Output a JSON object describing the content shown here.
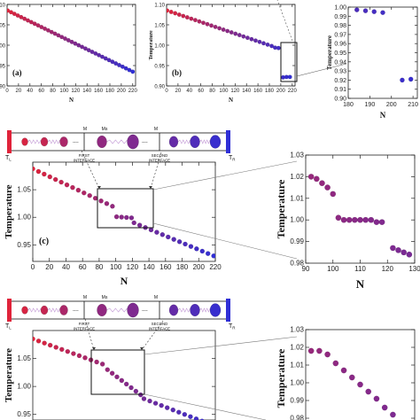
{
  "colors": {
    "hot": "#e0233a",
    "cold": "#2f2fd6",
    "mid": "#8a2fc4",
    "wire": "#c39ad6",
    "reservoir_left": "#e0233a",
    "reservoir_right": "#2f2fd6"
  },
  "diagrams": [
    {
      "reservoir_left_label": "T",
      "reservoir_left_sub": "L",
      "reservoir_right_label": "T",
      "reservoir_right_sub": "R",
      "m_left": "M",
      "ms": "Ms",
      "m_right": "M",
      "first_interface": [
        "FIRST",
        "INTERFACE"
      ],
      "second_interface": [
        "SECOND",
        "INTERFACE"
      ],
      "ellipsis": "----"
    },
    {
      "reservoir_left_label": "T",
      "reservoir_left_sub": "L",
      "reservoir_right_label": "T",
      "reservoir_right_sub": "R",
      "m_left": "M",
      "ms": "Ms",
      "m_right": "M",
      "first_interface": [
        "FIRST",
        "INTERFACE"
      ],
      "second_interface": [
        "SECOND",
        "INTERFACE"
      ],
      "ellipsis": "----"
    }
  ],
  "chart_data": [
    {
      "id": "a",
      "type": "scatter",
      "panel_label": "(a)",
      "xlabel": "N",
      "ylabel": "Temperature",
      "xlim": [
        0,
        225
      ],
      "ylim": [
        0.9,
        1.1
      ],
      "xticks": [
        0,
        20,
        40,
        60,
        80,
        100,
        120,
        140,
        160,
        180,
        200,
        220
      ],
      "yticks": [
        0.9,
        0.95,
        1.0,
        1.05,
        1.1
      ],
      "yticklabels": [
        "0.90",
        "0.95",
        "1.00",
        "1.05",
        "1.10"
      ],
      "segments": [
        {
          "x0": 1,
          "x1": 220,
          "step": 6,
          "y0": 1.085,
          "y1": 0.935
        }
      ]
    },
    {
      "id": "b",
      "type": "scatter",
      "panel_label": "(b)",
      "xlabel": "N",
      "ylabel": "Temperature",
      "xlim": [
        0,
        225
      ],
      "ylim": [
        0.9,
        1.1
      ],
      "xticks": [
        0,
        20,
        40,
        60,
        80,
        100,
        120,
        140,
        160,
        180,
        200,
        220
      ],
      "yticks": [
        0.9,
        0.95,
        1.0,
        1.05,
        1.1
      ],
      "yticklabels": [
        "0.90",
        "0.95",
        "1.00",
        "1.05",
        "1.10"
      ],
      "segments": [
        {
          "x0": 1,
          "x1": 184,
          "step": 7,
          "y0": 1.085,
          "y1": 0.998
        }
      ],
      "points": [
        [
          190,
          0.994
        ],
        [
          196,
          0.993
        ],
        [
          204,
          0.921
        ],
        [
          210,
          0.922
        ],
        [
          216,
          0.922
        ]
      ]
    },
    {
      "id": "b_zoom",
      "type": "scatter",
      "panel_label": "",
      "xlabel": "N",
      "ylabel": "Temperature",
      "xlim": [
        180,
        212
      ],
      "ylim": [
        0.9,
        1.0
      ],
      "xticks": [
        180,
        190,
        200,
        210
      ],
      "yticks": [
        0.9,
        0.91,
        0.92,
        0.93,
        0.94,
        0.95,
        0.96,
        0.97,
        0.98,
        0.99,
        1.0
      ],
      "yticklabels": [
        "0.90",
        "0.91",
        "0.92",
        "0.93",
        "0.94",
        "0.95",
        "0.96",
        "0.97",
        "0.98",
        "0.99",
        "1.00"
      ],
      "points": [
        [
          184,
          0.997
        ],
        [
          188,
          0.996
        ],
        [
          192,
          0.995
        ],
        [
          196,
          0.994
        ],
        [
          205,
          0.92
        ],
        [
          209,
          0.921
        ]
      ]
    },
    {
      "id": "c",
      "type": "scatter",
      "panel_label": "(c)",
      "xlabel": "N",
      "ylabel": "Temperature",
      "xlim": [
        0,
        220
      ],
      "ylim": [
        0.92,
        1.1
      ],
      "xticks": [
        0,
        20,
        40,
        60,
        80,
        100,
        120,
        140,
        160,
        180,
        200,
        220
      ],
      "yticks": [
        0.95,
        1.0,
        1.05
      ],
      "yticklabels": [
        "0.95",
        "1.00",
        "1.05"
      ],
      "segments": [
        {
          "x0": 0,
          "x1": 96,
          "step": 7,
          "y0": 1.088,
          "y1": 1.02
        },
        {
          "x0": 101,
          "x1": 119,
          "step": 6,
          "y0": 1.001,
          "y1": 0.999
        },
        {
          "x0": 122,
          "x1": 218,
          "step": 7,
          "y0": 0.99,
          "y1": 0.93
        }
      ]
    },
    {
      "id": "c_zoom",
      "type": "scatter",
      "panel_label": "",
      "xlabel": "N",
      "ylabel": "Temperature",
      "xlim": [
        90,
        130
      ],
      "ylim": [
        0.98,
        1.03
      ],
      "xticks": [
        90,
        100,
        110,
        120,
        130
      ],
      "yticks": [
        0.98,
        0.99,
        1.0,
        1.01,
        1.02,
        1.03
      ],
      "yticklabels": [
        "0.98",
        "0.99",
        "1.00",
        "1.01",
        "1.02",
        "1.03"
      ],
      "points": [
        [
          92,
          1.02
        ],
        [
          94,
          1.019
        ],
        [
          96,
          1.017
        ],
        [
          98,
          1.015
        ],
        [
          100,
          1.012
        ],
        [
          102,
          1.001
        ],
        [
          104,
          1.0
        ],
        [
          106,
          1.0
        ],
        [
          108,
          1.0
        ],
        [
          110,
          1.0
        ],
        [
          112,
          1.0
        ],
        [
          114,
          1.0
        ],
        [
          116,
          0.999
        ],
        [
          118,
          0.999
        ],
        [
          122,
          0.987
        ],
        [
          124,
          0.986
        ],
        [
          126,
          0.985
        ],
        [
          128,
          0.984
        ]
      ]
    },
    {
      "id": "d",
      "type": "scatter",
      "panel_label": "",
      "xlabel": "",
      "ylabel": "Temperature",
      "xlim": [
        0,
        220
      ],
      "ylim": [
        0.94,
        1.1
      ],
      "xticks": [],
      "yticks": [
        0.95,
        1.0,
        1.05
      ],
      "yticklabels": [
        "0.95",
        "1.00",
        "1.05"
      ],
      "segments": [
        {
          "x0": 0,
          "x1": 84,
          "step": 7,
          "y0": 1.085,
          "y1": 1.04
        },
        {
          "x0": 90,
          "x1": 130,
          "step": 6,
          "y0": 1.03,
          "y1": 0.985
        },
        {
          "x0": 134,
          "x1": 218,
          "step": 7,
          "y0": 0.978,
          "y1": 0.93
        }
      ]
    },
    {
      "id": "d_zoom",
      "type": "scatter",
      "panel_label": "",
      "xlabel": "",
      "ylabel": "Temperature",
      "xlim": [
        90,
        130
      ],
      "ylim": [
        0.975,
        1.03
      ],
      "xticks": [],
      "yticks": [
        0.98,
        0.99,
        1.0,
        1.01,
        1.02,
        1.03
      ],
      "yticklabels": [
        "0.98",
        "0.99",
        "1.00",
        "1.01",
        "1.02",
        "1.03"
      ],
      "points": [
        [
          92,
          1.018
        ],
        [
          95,
          1.018
        ],
        [
          98,
          1.016
        ],
        [
          101,
          1.011
        ],
        [
          104,
          1.007
        ],
        [
          107,
          1.003
        ],
        [
          110,
          0.999
        ],
        [
          113,
          0.995
        ],
        [
          116,
          0.991
        ],
        [
          119,
          0.986
        ],
        [
          122,
          0.982
        ]
      ]
    }
  ]
}
